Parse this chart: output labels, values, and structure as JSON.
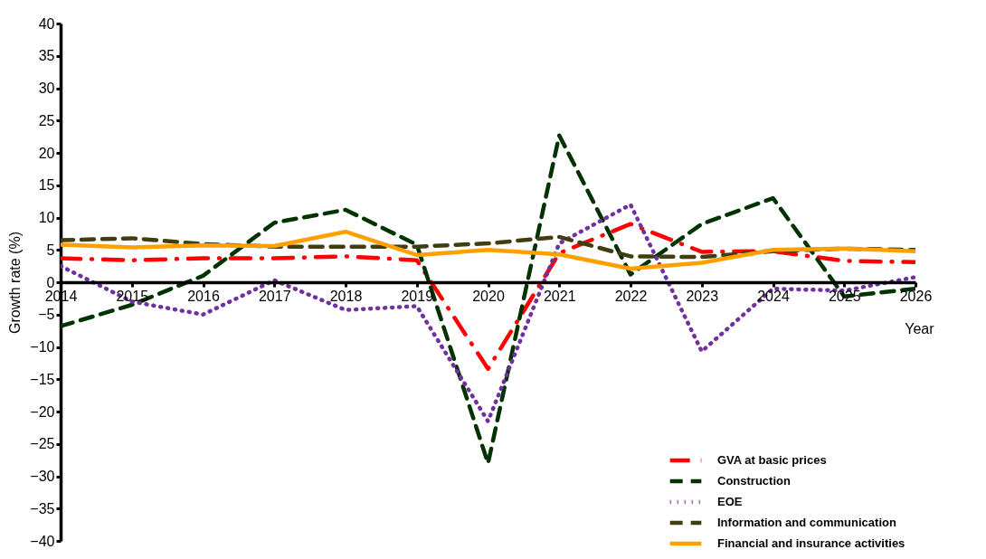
{
  "chart_data": {
    "type": "line",
    "xlabel": "Year",
    "ylabel": "Growth rate (%)",
    "x": [
      2014,
      2015,
      2016,
      2017,
      2018,
      2019,
      2020,
      2021,
      2022,
      2023,
      2024,
      2025,
      2026
    ],
    "xlim": [
      2014,
      2026
    ],
    "xticks": [
      2014,
      2015,
      2016,
      2017,
      2018,
      2019,
      2020,
      2021,
      2022,
      2023,
      2024,
      2025,
      2026
    ],
    "ylim": [
      -40,
      40
    ],
    "yticks": [
      -40,
      -35,
      -30,
      -25,
      -20,
      -15,
      -10,
      -5,
      0,
      5,
      10,
      15,
      20,
      25,
      30,
      35,
      40
    ],
    "grid": false,
    "legend": "bottom right",
    "series": [
      {
        "name": "GVA at basic prices",
        "color": "#ff0000",
        "line_style": "dashdot",
        "values": [
          3.7,
          3.4,
          3.7,
          3.7,
          4.0,
          3.4,
          -13.4,
          4.5,
          9.0,
          4.7,
          4.8,
          3.3,
          3.1
        ]
      },
      {
        "name": "Construction",
        "color": "#003300",
        "line_style": "dashed",
        "values": [
          -6.8,
          -3.5,
          1,
          9.2,
          11.2,
          5.8,
          -28,
          22.7,
          1.2,
          9,
          13,
          -2.2,
          -1
        ]
      },
      {
        "name": "EOE",
        "color": "#7030a0",
        "line_style": "dotted",
        "values": [
          2.5,
          -3,
          -5,
          0.3,
          -4.3,
          -3.7,
          -21.5,
          6,
          12,
          -10.7,
          -1,
          -1.3,
          0.8
        ]
      },
      {
        "name": "Information and communication",
        "color": "#403d10",
        "line_style": "dashed",
        "values": [
          6.5,
          6.8,
          5.9,
          5.5,
          5.5,
          5.5,
          6,
          7,
          4,
          3.9,
          4.8,
          5.2,
          5
        ]
      },
      {
        "name": "Financial and insurance activities",
        "color": "#ffa000",
        "line_style": "solid",
        "values": [
          5.8,
          5.4,
          5.7,
          5.6,
          7.8,
          4.2,
          5,
          4.3,
          2.1,
          3,
          5,
          5.2,
          4.8
        ]
      }
    ]
  }
}
